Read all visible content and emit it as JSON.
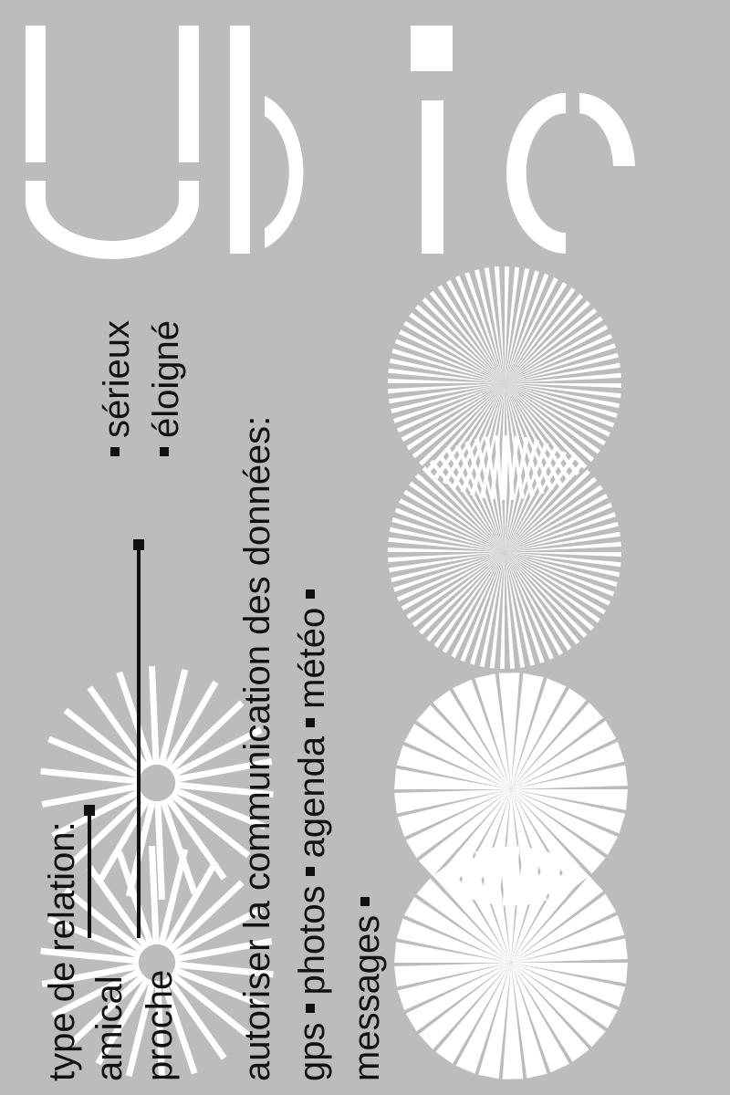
{
  "poster": {
    "title": "Ubic",
    "colors": {
      "background": "#bcbcbc",
      "foreground": "#ffffff",
      "ink": "#111111"
    },
    "relation_heading": "type de relation:",
    "relation_options": [
      "amical",
      "proche",
      "sérieux",
      "éloigné"
    ],
    "data_heading": "autoriser la communication des données:",
    "data_options": [
      "gps",
      "photos",
      "agenda",
      "météo",
      "messages"
    ]
  }
}
